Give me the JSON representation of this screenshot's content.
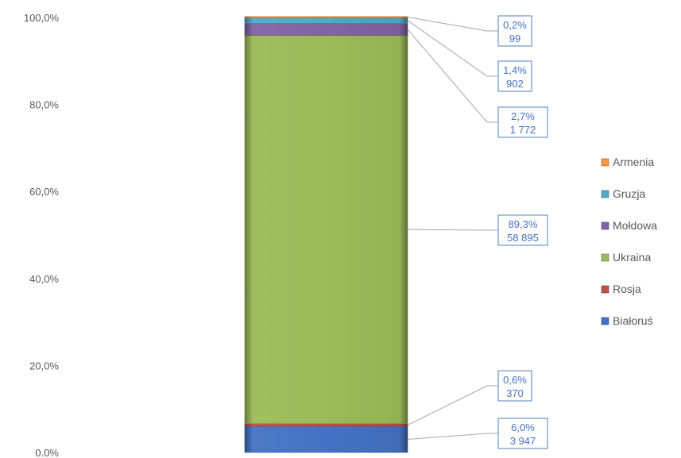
{
  "chart_data": {
    "type": "bar",
    "stacked": true,
    "percent_stacked": true,
    "categories": [
      ""
    ],
    "ylim": [
      0,
      100
    ],
    "yticks": [
      "0.0%",
      "20,0%",
      "40,0%",
      "60,0%",
      "80,0%",
      "100,0%"
    ],
    "grid": false,
    "legend_position": "right",
    "series": [
      {
        "name": "Białoruś",
        "color": "#4472c4",
        "percent": 6.0,
        "value": 3947,
        "label_pct": "6,0%",
        "label_val": "3 947"
      },
      {
        "name": "Rosja",
        "color": "#c0504d",
        "percent": 0.6,
        "value": 370,
        "label_pct": "0,6%",
        "label_val": "370"
      },
      {
        "name": "Ukraina",
        "color": "#9bbb59",
        "percent": 89.3,
        "value": 58895,
        "label_pct": "89,3%",
        "label_val": "58 895"
      },
      {
        "name": "Mołdowa",
        "color": "#8064a2",
        "percent": 2.7,
        "value": 1772,
        "label_pct": "2,7%",
        "label_val": "1 772"
      },
      {
        "name": "Gruzja",
        "color": "#4bacc6",
        "percent": 1.4,
        "value": 902,
        "label_pct": "1,4%",
        "label_val": "902"
      },
      {
        "name": "Armenia",
        "color": "#f79646",
        "percent": 0.2,
        "value": 99,
        "label_pct": "0,2%",
        "label_val": "99"
      }
    ]
  }
}
